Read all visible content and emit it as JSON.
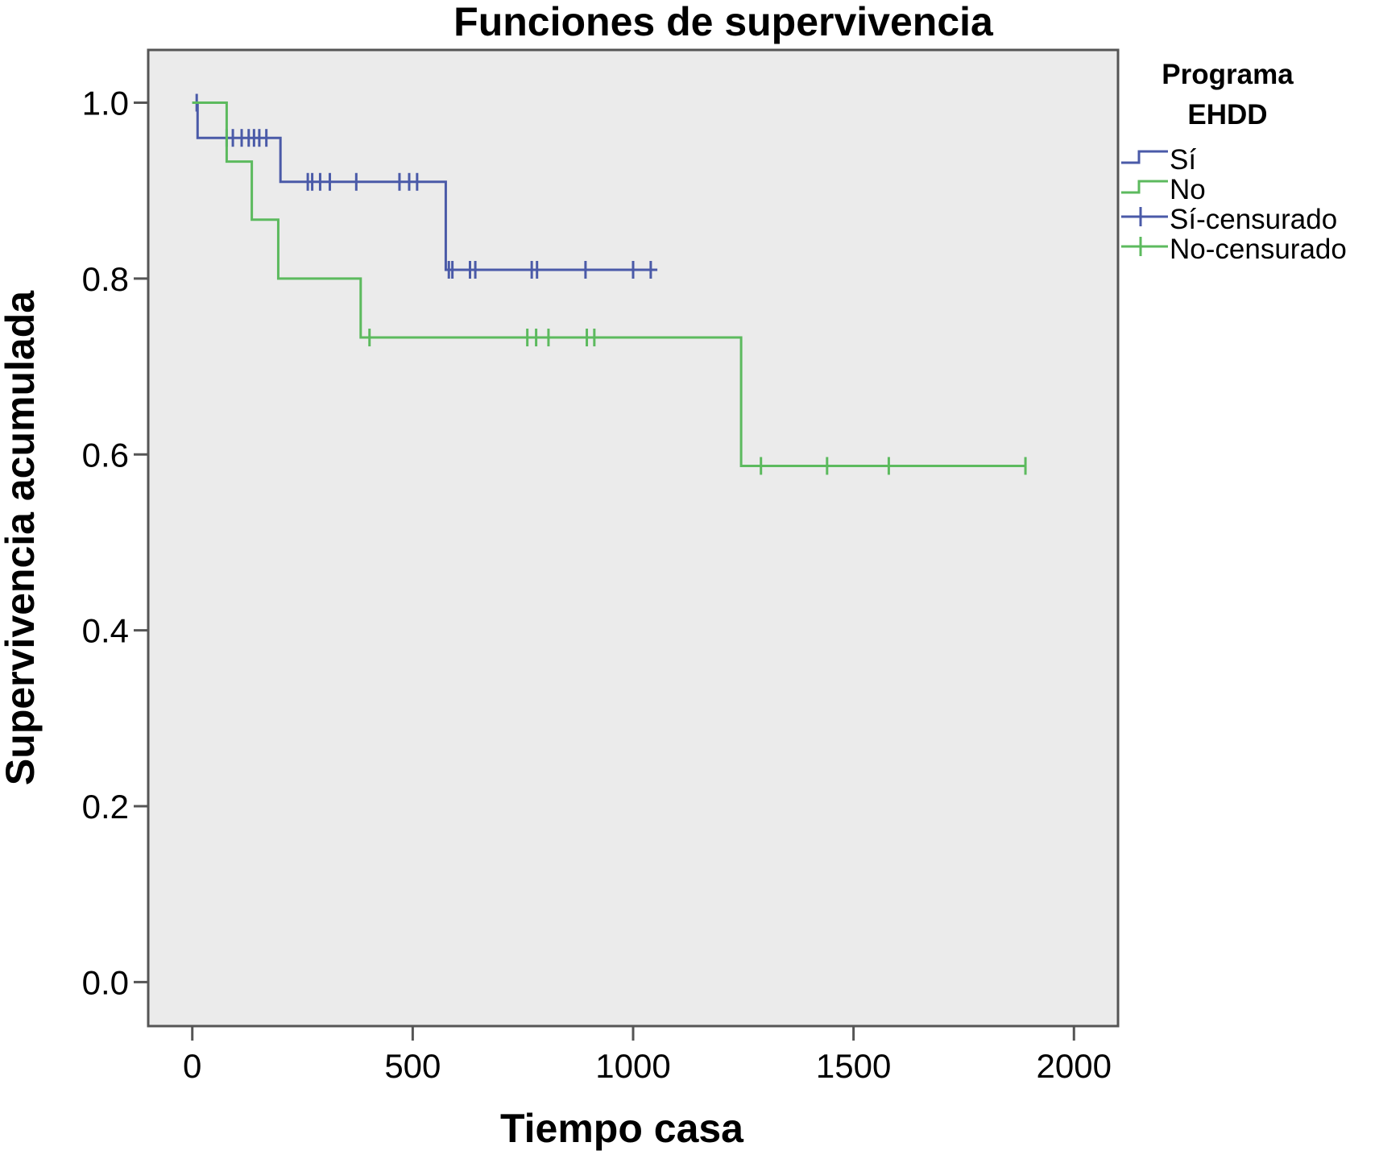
{
  "chart_data": {
    "type": "line",
    "subtype": "kaplan-meier step",
    "title": "Funciones de supervivencia",
    "xlabel": "Tiempo casa",
    "ylabel": "Supervivencia acumulada",
    "xlim": [
      -100,
      2100
    ],
    "ylim": [
      -0.05,
      1.06
    ],
    "x_ticks": [
      0,
      500,
      1000,
      1500,
      2000
    ],
    "x_tick_labels": [
      "0",
      "500",
      "1000",
      "1500",
      "2000"
    ],
    "y_ticks": [
      0.0,
      0.2,
      0.4,
      0.6,
      0.8,
      1.0
    ],
    "y_tick_labels": [
      "0.0",
      "0.2",
      "0.4",
      "0.6",
      "0.8",
      "1.0"
    ],
    "grid": false,
    "background": "#ebebeb",
    "legend": {
      "title_lines": [
        "Programa",
        "EHDD"
      ],
      "position": "right",
      "entries": [
        {
          "label": "Sí",
          "kind": "step",
          "series": 0
        },
        {
          "label": "No",
          "kind": "step",
          "series": 1
        },
        {
          "label": "Sí-censurado",
          "kind": "censor",
          "series": 0
        },
        {
          "label": "No-censurado",
          "kind": "censor",
          "series": 1
        }
      ]
    },
    "series": [
      {
        "name": "Sí",
        "color": "#4a5aa8",
        "steps": [
          [
            0,
            1.0
          ],
          [
            12,
            0.96
          ],
          [
            200,
            0.91
          ],
          [
            575,
            0.81
          ],
          [
            1055,
            0.81
          ]
        ],
        "censored": [
          [
            10,
            1.0
          ],
          [
            78,
            0.96
          ],
          [
            92,
            0.96
          ],
          [
            112,
            0.96
          ],
          [
            128,
            0.96
          ],
          [
            140,
            0.96
          ],
          [
            152,
            0.96
          ],
          [
            168,
            0.96
          ],
          [
            262,
            0.91
          ],
          [
            272,
            0.91
          ],
          [
            290,
            0.91
          ],
          [
            312,
            0.91
          ],
          [
            372,
            0.91
          ],
          [
            470,
            0.91
          ],
          [
            492,
            0.91
          ],
          [
            510,
            0.91
          ],
          [
            582,
            0.81
          ],
          [
            590,
            0.81
          ],
          [
            630,
            0.81
          ],
          [
            642,
            0.81
          ],
          [
            770,
            0.81
          ],
          [
            782,
            0.81
          ],
          [
            892,
            0.81
          ],
          [
            1000,
            0.81
          ],
          [
            1040,
            0.81
          ]
        ]
      },
      {
        "name": "No",
        "color": "#5cba5e",
        "steps": [
          [
            0,
            1.0
          ],
          [
            78,
            0.933
          ],
          [
            135,
            0.867
          ],
          [
            195,
            0.8
          ],
          [
            382,
            0.733
          ],
          [
            1245,
            0.587
          ],
          [
            1890,
            0.587
          ]
        ],
        "censored": [
          [
            402,
            0.733
          ],
          [
            760,
            0.733
          ],
          [
            780,
            0.733
          ],
          [
            808,
            0.733
          ],
          [
            895,
            0.733
          ],
          [
            912,
            0.733
          ],
          [
            1290,
            0.587
          ],
          [
            1440,
            0.587
          ],
          [
            1580,
            0.587
          ],
          [
            1890,
            0.587
          ]
        ]
      }
    ]
  }
}
